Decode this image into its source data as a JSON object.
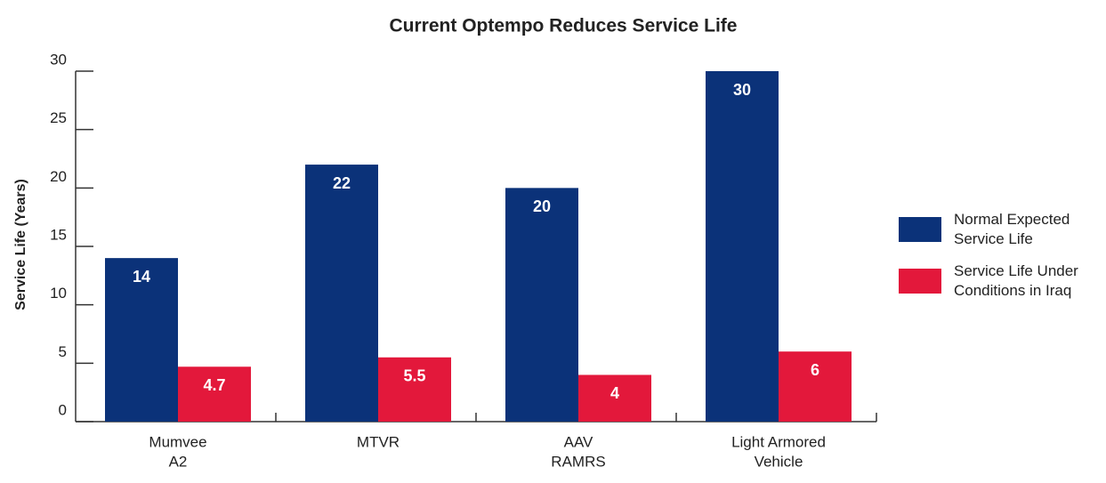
{
  "chart_data": {
    "type": "bar",
    "title": "Current Optempo Reduces Service Life",
    "y_label": "Service Life (Years)",
    "categories": [
      [
        "Mumvee",
        "A2"
      ],
      [
        "MTVR"
      ],
      [
        "AAV",
        "RAMRS"
      ],
      [
        "Light Armored",
        "Vehicle"
      ]
    ],
    "series": [
      {
        "name": "Normal Expected Service Life",
        "color": "#0b3279",
        "values": [
          14,
          22,
          20,
          30
        ]
      },
      {
        "name": "Service Life Under Conditions in Iraq",
        "color": "#e3183b",
        "values": [
          4.7,
          5.5,
          4,
          6
        ]
      }
    ],
    "ylim": [
      0,
      30
    ],
    "yticks": [
      0,
      5,
      10,
      15,
      20,
      25,
      30
    ],
    "legend": "right"
  }
}
